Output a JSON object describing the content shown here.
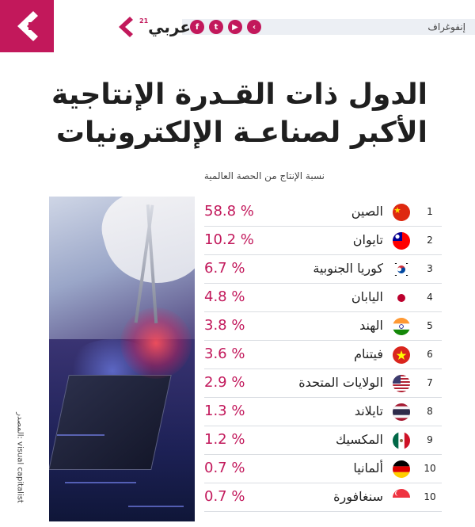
{
  "header": {
    "brand_name": "عربي",
    "brand_sup": "21",
    "category": "إنفوغراف",
    "socials": [
      {
        "icon": "facebook-icon",
        "glyph": "f"
      },
      {
        "icon": "twitter-icon",
        "glyph": "t"
      },
      {
        "icon": "youtube-icon",
        "glyph": "▶"
      },
      {
        "icon": "arabi21-icon",
        "glyph": "‹"
      }
    ],
    "accent_color": "#c2185b"
  },
  "title": {
    "line1": "الدول ذات القـدرة الإنتاجية",
    "line2": "الأكبر لصناعـة الإلكترونيات"
  },
  "subtitle": "نسبة الإنتاج من الحصة العالمية",
  "rows": [
    {
      "rank": "1",
      "country": "الصين",
      "value": "58.8 %",
      "flag": "china"
    },
    {
      "rank": "2",
      "country": "تايوان",
      "value": "10.2 %",
      "flag": "taiwan"
    },
    {
      "rank": "3",
      "country": "كوريا الجنوبية",
      "value": "6.7 %",
      "flag": "south-korea"
    },
    {
      "rank": "4",
      "country": "اليابان",
      "value": "4.8 %",
      "flag": "japan"
    },
    {
      "rank": "5",
      "country": "الهند",
      "value": "3.8 %",
      "flag": "india"
    },
    {
      "rank": "6",
      "country": "فيتنام",
      "value": "3.6 %",
      "flag": "vietnam"
    },
    {
      "rank": "7",
      "country": "الولايات المتحدة",
      "value": "2.9 %",
      "flag": "usa"
    },
    {
      "rank": "8",
      "country": "تايلاند",
      "value": "1.3 %",
      "flag": "thailand"
    },
    {
      "rank": "9",
      "country": "المكسيك",
      "value": "1.2 %",
      "flag": "mexico"
    },
    {
      "rank": "10",
      "country": "ألمانيا",
      "value": "0.7 %",
      "flag": "germany"
    },
    {
      "rank": "10",
      "country": "سنغافورة",
      "value": "0.7 %",
      "flag": "singapore"
    }
  ],
  "source": "المصدر: visual capitalist"
}
